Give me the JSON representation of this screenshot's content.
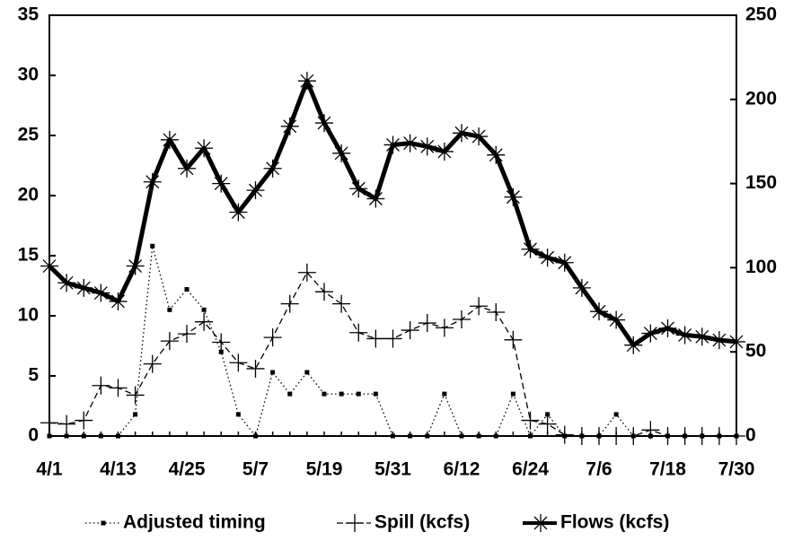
{
  "chart_data": {
    "type": "line",
    "categories": [
      "4/1",
      null,
      null,
      null,
      "4/13",
      null,
      null,
      null,
      "4/25",
      null,
      null,
      null,
      "5/7",
      null,
      null,
      null,
      "5/19",
      null,
      null,
      null,
      "5/31",
      null,
      null,
      null,
      "6/12",
      null,
      null,
      null,
      "6/24",
      null,
      null,
      null,
      "7/6",
      null,
      null,
      null,
      "7/18",
      null,
      null,
      null,
      "7/30"
    ],
    "ylim": [
      0,
      35
    ],
    "yticks": [
      0,
      5,
      10,
      15,
      20,
      25,
      30,
      35
    ],
    "y2lim": [
      0,
      250
    ],
    "y2ticks": [
      0,
      50,
      100,
      150,
      200,
      250
    ],
    "series": [
      {
        "name": "Adjusted timing",
        "color": "#000000",
        "marker": "square",
        "line": "dotted",
        "values": [
          0,
          0,
          0,
          0,
          0,
          1.8,
          15.8,
          10.5,
          12.2,
          10.5,
          7.0,
          1.8,
          0,
          5.3,
          3.5,
          5.3,
          3.5,
          3.5,
          3.5,
          3.5,
          0,
          0,
          0,
          3.5,
          0,
          0,
          0,
          3.5,
          0,
          1.8,
          0,
          0,
          0,
          1.8,
          0,
          0,
          0,
          0,
          0,
          0,
          0
        ]
      },
      {
        "name": "Spill (kcfs)",
        "color": "#000000",
        "marker": "plus",
        "line": "dashed",
        "values": [
          1.1,
          1.0,
          1.3,
          4.2,
          4.0,
          3.4,
          6.0,
          7.9,
          8.5,
          9.5,
          7.8,
          6.1,
          5.6,
          8.2,
          11.0,
          13.6,
          12.0,
          11.0,
          8.6,
          8.1,
          8.1,
          8.8,
          9.4,
          9.0,
          9.7,
          10.8,
          10.3,
          8.0,
          1.3,
          1.0,
          0.1,
          0,
          0,
          0,
          0,
          0.5,
          0,
          0,
          0,
          0,
          0
        ]
      },
      {
        "name": "Flows (kcfs)",
        "color": "#000000",
        "marker": "star",
        "line": "thick",
        "axis": "y2",
        "values": [
          101,
          91,
          88,
          85,
          80,
          101,
          151,
          176,
          159,
          171,
          150,
          133,
          146,
          159,
          184,
          211,
          186,
          168,
          147,
          141,
          173,
          174,
          172,
          169,
          180,
          178,
          167,
          142,
          111,
          106,
          103,
          88,
          74,
          69,
          54,
          61,
          64,
          60,
          59,
          57,
          56
        ]
      }
    ]
  }
}
